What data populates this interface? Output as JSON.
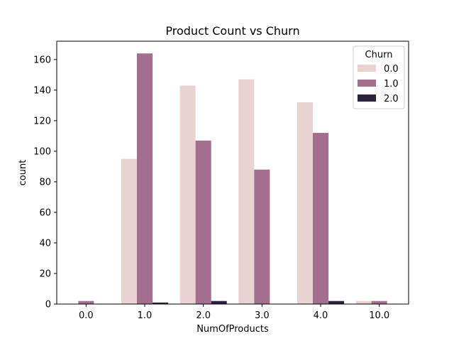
{
  "chart_data": {
    "type": "bar",
    "title": "Product Count vs Churn",
    "xlabel": "NumOfProducts",
    "ylabel": "count",
    "categories": [
      "0.0",
      "1.0",
      "2.0",
      "3.0",
      "4.0",
      "10.0"
    ],
    "ylim": [
      0,
      172
    ],
    "yticks": [
      0,
      20,
      40,
      60,
      80,
      100,
      120,
      140,
      160
    ],
    "grid": false,
    "legend": {
      "title": "Churn",
      "placement": "top-right"
    },
    "series": [
      {
        "name": "0.0",
        "color": "#e8d3d1",
        "values": [
          0,
          95,
          143,
          147,
          132,
          2
        ]
      },
      {
        "name": "1.0",
        "color": "#a2708e",
        "values": [
          2,
          164,
          107,
          88,
          112,
          2
        ]
      },
      {
        "name": "2.0",
        "color": "#2d2140",
        "values": [
          0,
          1,
          2,
          0,
          2,
          0
        ]
      }
    ]
  }
}
